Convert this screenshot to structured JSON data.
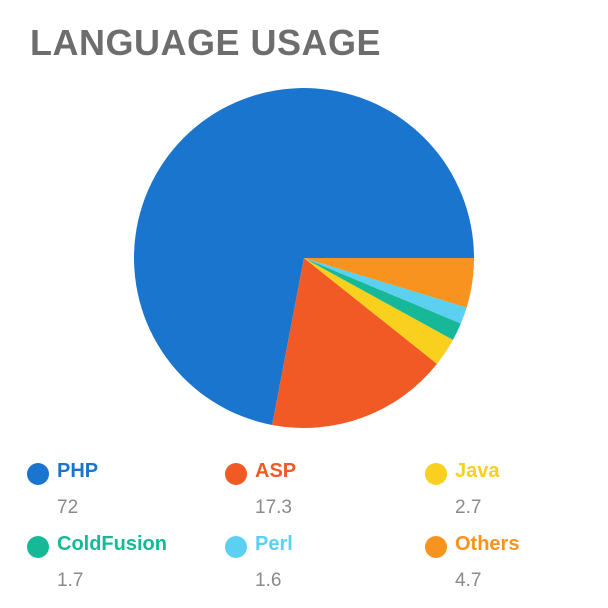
{
  "chart_data": {
    "type": "pie",
    "title": "LANGUAGE USAGE",
    "categories": [
      "PHP",
      "ASP",
      "Java",
      "ColdFusion",
      "Perl",
      "Others"
    ],
    "values": [
      72,
      17.3,
      2.7,
      1.7,
      1.6,
      4.7
    ],
    "value_labels": [
      "72",
      "17.3",
      "2.7",
      "1.7",
      "1.6",
      "4.7"
    ],
    "colors": [
      "#1a75cf",
      "#f15a24",
      "#f9d01e",
      "#16b898",
      "#5bd0f0",
      "#f7931e"
    ],
    "legend_position": "bottom"
  }
}
